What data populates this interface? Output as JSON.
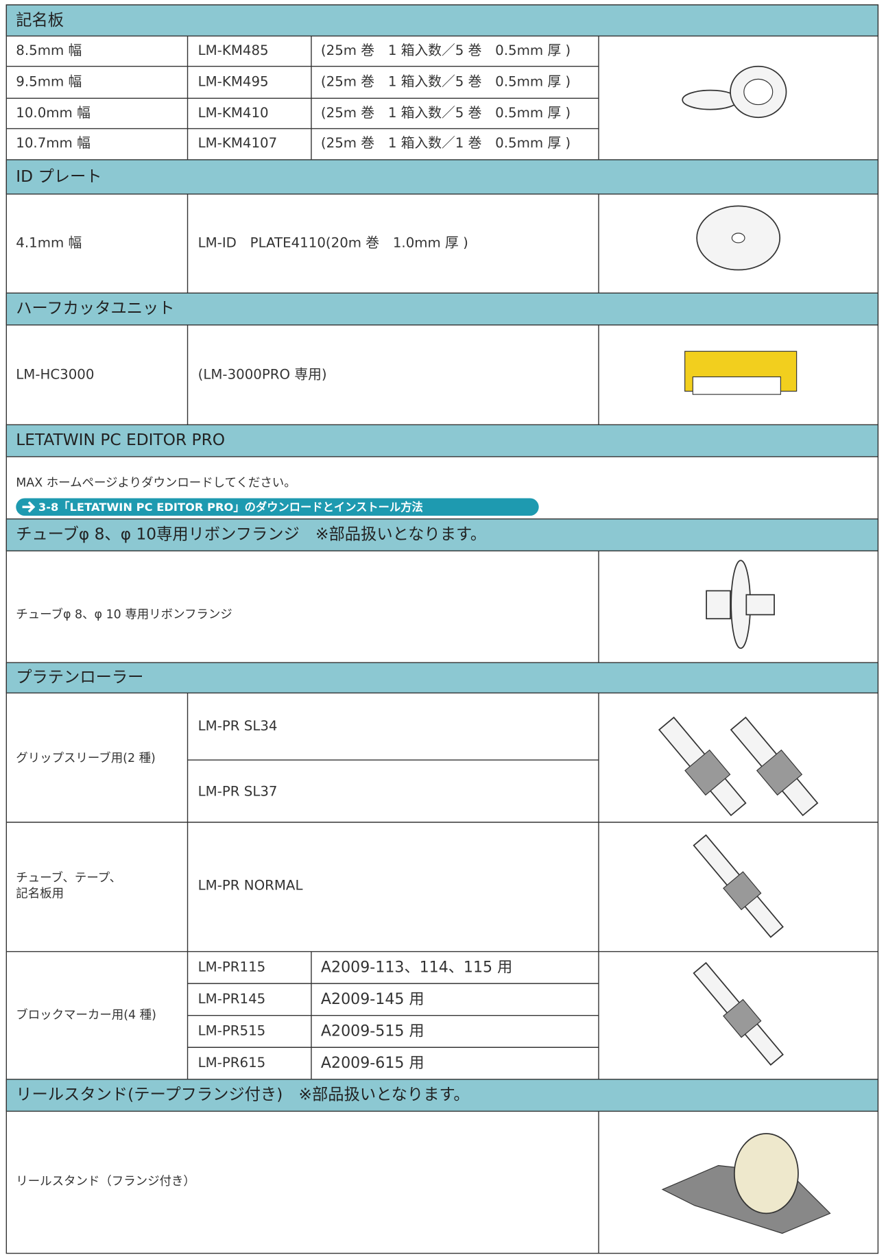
{
  "sections": [
    {
      "title": "記名板",
      "rows": [
        {
          "width": "8.5mm 幅",
          "model": "LM-KM485",
          "spec": "(25m 巻　1 箱入数／5 巻　0.5mm 厚 )"
        },
        {
          "width": "9.5mm 幅",
          "model": "LM-KM495",
          "spec": "(25m 巻　1 箱入数／5 巻　0.5mm 厚 )"
        },
        {
          "width": "10.0mm 幅",
          "model": "LM-KM410",
          "spec": "(25m 巻　1 箱入数／5 巻　0.5mm 厚 )"
        },
        {
          "width": "10.7mm 幅",
          "model": "LM-KM4107",
          "spec": "(25m 巻　1 箱入数／1 巻　0.5mm 厚 )"
        }
      ]
    },
    {
      "title": "ID プレート",
      "rows": [
        {
          "width": "4.1mm 幅",
          "model": "LM-ID　PLATE4110(20m 巻　1.0mm 厚 )"
        }
      ]
    },
    {
      "title": "ハーフカッタユニット",
      "rows": [
        {
          "model": "LM-HC3000",
          "note": "(LM-3000PRO 専用)"
        }
      ]
    },
    {
      "title": "LETATWIN PC EDITOR PRO",
      "text": "MAX ホームページよりダウンロードしてください。",
      "link": "3-8「LETATWIN PC EDITOR PRO」のダウンロードとインストール方法"
    },
    {
      "title": "チューブφ 8、φ 10専用リボンフランジ　※部品扱いとなります。",
      "rows": [
        {
          "item": "チューブφ 8、φ 10 専用リボンフランジ"
        }
      ]
    },
    {
      "title": "プラテンローラー",
      "groups": [
        {
          "label": [
            "グリップスリーブ用(2 種)"
          ],
          "models": [
            {
              "model": "LM-PR SL34"
            },
            {
              "model": "LM-PR SL37"
            }
          ]
        },
        {
          "label": [
            "チューブ、テープ、",
            "記名板用"
          ],
          "models": [
            {
              "model": "LM-PR NORMAL"
            }
          ]
        },
        {
          "label": [
            "ブロックマーカー用(4 種)"
          ],
          "models": [
            {
              "model": "LM-PR115",
              "use": "A2009-113、114、115 用"
            },
            {
              "model": "LM-PR145",
              "use": "A2009-145 用"
            },
            {
              "model": "LM-PR515",
              "use": "A2009-515 用"
            },
            {
              "model": "LM-PR615",
              "use": "A2009-615 用"
            }
          ]
        }
      ]
    },
    {
      "title": "リールスタンド(テープフランジ付き)　※部品扱いとなります。",
      "rows": [
        {
          "item": "リールスタンド（フランジ付き）"
        }
      ]
    }
  ]
}
